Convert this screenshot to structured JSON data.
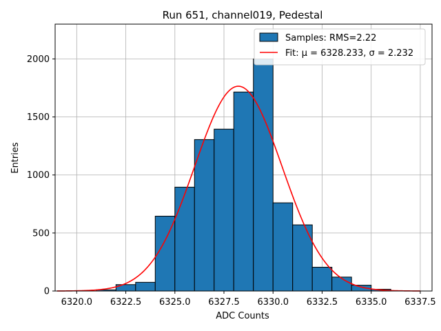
{
  "chart_data": {
    "type": "bar",
    "title": "Run 651, channel019, Pedestal",
    "xlabel": "ADC Counts",
    "ylabel": "Entries",
    "xlim": [
      6318.9,
      6338.1
    ],
    "ylim": [
      0,
      2300
    ],
    "xticks": [
      6320.0,
      6322.5,
      6325.0,
      6327.5,
      6330.0,
      6332.5,
      6335.0,
      6337.5
    ],
    "xtick_labels": [
      "6320.0",
      "6322.5",
      "6325.0",
      "6327.5",
      "6330.0",
      "6332.5",
      "6335.0",
      "6337.5"
    ],
    "yticks": [
      0,
      500,
      1000,
      1500,
      2000
    ],
    "ytick_labels": [
      "0",
      "500",
      "1000",
      "1500",
      "2000"
    ],
    "grid": true,
    "legend_position": "top-right",
    "bins": [
      {
        "x0": 6321,
        "x1": 6322,
        "value": 10
      },
      {
        "x0": 6322,
        "x1": 6323,
        "value": 55
      },
      {
        "x0": 6323,
        "x1": 6324,
        "value": 75
      },
      {
        "x0": 6324,
        "x1": 6325,
        "value": 645
      },
      {
        "x0": 6325,
        "x1": 6326,
        "value": 895
      },
      {
        "x0": 6326,
        "x1": 6327,
        "value": 1305
      },
      {
        "x0": 6327,
        "x1": 6328,
        "value": 1395
      },
      {
        "x0": 6328,
        "x1": 6329,
        "value": 1715
      },
      {
        "x0": 6329,
        "x1": 6330,
        "value": 2000
      },
      {
        "x0": 6330,
        "x1": 6331,
        "value": 760
      },
      {
        "x0": 6331,
        "x1": 6332,
        "value": 570
      },
      {
        "x0": 6332,
        "x1": 6333,
        "value": 205
      },
      {
        "x0": 6333,
        "x1": 6334,
        "value": 120
      },
      {
        "x0": 6334,
        "x1": 6335,
        "value": 50
      },
      {
        "x0": 6335,
        "x1": 6336,
        "value": 15
      }
    ],
    "fit": {
      "mu": 6328.233,
      "sigma": 2.232,
      "amplitude": 1765,
      "x_range": [
        6319,
        6337.5
      ]
    },
    "series": [
      {
        "name": "Samples: RMS=2.22",
        "kind": "histogram",
        "color": "#1f77b4"
      },
      {
        "name": "Fit: μ = 6328.233, σ = 2.232",
        "kind": "line",
        "color": "#ff0000"
      }
    ]
  }
}
